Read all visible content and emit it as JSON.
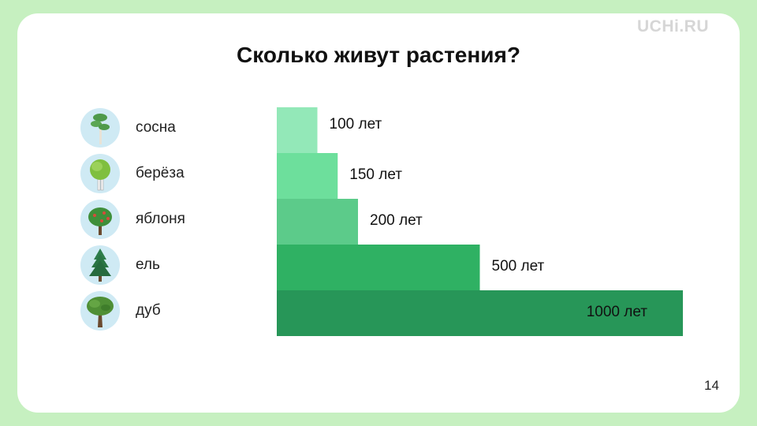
{
  "logo": "UCHi.RU",
  "title": "Сколько живут растения?",
  "page_number": "14",
  "plants": [
    {
      "name": "сосна",
      "icon": "pine-tree-icon"
    },
    {
      "name": "берёза",
      "icon": "birch-tree-icon"
    },
    {
      "name": "яблоня",
      "icon": "apple-tree-icon"
    },
    {
      "name": "ель",
      "icon": "spruce-tree-icon"
    },
    {
      "name": "дуб",
      "icon": "oak-tree-icon"
    }
  ],
  "chart_data": {
    "type": "bar",
    "orientation": "horizontal",
    "categories": [
      "сосна",
      "берёза",
      "яблоня",
      "ель",
      "дуб"
    ],
    "values": [
      100,
      150,
      200,
      500,
      1000
    ],
    "value_labels": [
      "100 лет",
      "150 лет",
      "200 лет",
      "500 лет",
      "1000 лет"
    ],
    "colors": [
      "#93e8b8",
      "#6ddf9c",
      "#5ccb8a",
      "#2fb163",
      "#279658"
    ],
    "grid": false,
    "legend": "none"
  }
}
